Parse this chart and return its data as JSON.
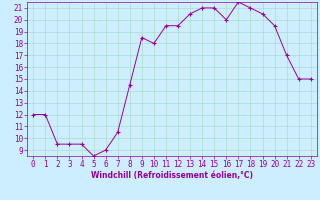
{
  "x": [
    0,
    1,
    2,
    3,
    4,
    5,
    6,
    7,
    8,
    9,
    10,
    11,
    12,
    13,
    14,
    15,
    16,
    17,
    18,
    19,
    20,
    21,
    22,
    23
  ],
  "y": [
    12,
    12,
    9.5,
    9.5,
    9.5,
    8.5,
    9,
    10.5,
    14.5,
    18.5,
    18,
    19.5,
    19.5,
    20.5,
    21,
    21,
    20,
    21.5,
    21,
    20.5,
    19.5,
    17,
    15,
    15
  ],
  "line_color": "#990099",
  "marker": "+",
  "marker_size": 3,
  "bg_color": "#cceeff",
  "grid_color": "#aaddcc",
  "xlabel": "Windchill (Refroidissement éolien,°C)",
  "xlabel_color": "#990099",
  "tick_color": "#990099",
  "xlim": [
    -0.5,
    23.5
  ],
  "ylim": [
    8.5,
    21.5
  ],
  "yticks": [
    9,
    10,
    11,
    12,
    13,
    14,
    15,
    16,
    17,
    18,
    19,
    20,
    21
  ],
  "xticks": [
    0,
    1,
    2,
    3,
    4,
    5,
    6,
    7,
    8,
    9,
    10,
    11,
    12,
    13,
    14,
    15,
    16,
    17,
    18,
    19,
    20,
    21,
    22,
    23
  ],
  "font_size": 5.5
}
